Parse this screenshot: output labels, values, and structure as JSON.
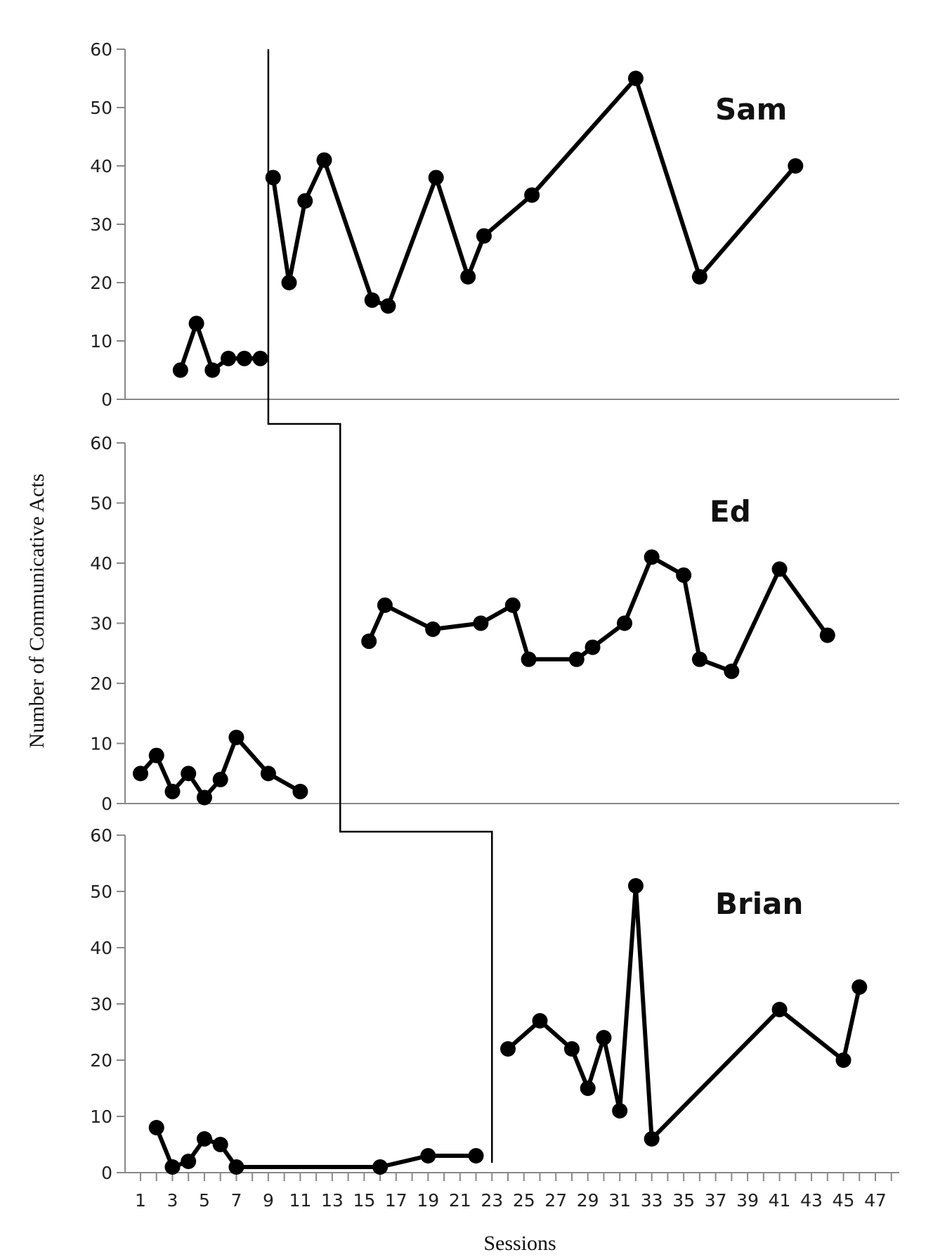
{
  "chart_data": {
    "type": "line",
    "ylabel": "Number of Communicative Acts",
    "xlabel": "Sessions",
    "x_ticks": [
      1,
      3,
      5,
      7,
      9,
      11,
      13,
      15,
      17,
      19,
      21,
      23,
      25,
      27,
      29,
      31,
      33,
      35,
      37,
      39,
      41,
      43,
      45,
      47
    ],
    "xlim": [
      0,
      48
    ],
    "ylim": [
      0,
      60
    ],
    "y_ticks": [
      0,
      10,
      20,
      30,
      40,
      50,
      60
    ],
    "grid": false,
    "line_color": "#000000",
    "phase_change_after_session": {
      "Sam": 9,
      "Ed": 13.5,
      "Brian": 23
    },
    "panels": [
      {
        "name": "Sam",
        "baseline": [
          [
            3.5,
            5
          ],
          [
            4.5,
            13
          ],
          [
            5.5,
            5
          ],
          [
            6.5,
            7
          ],
          [
            7.5,
            7
          ],
          [
            8.5,
            7
          ]
        ],
        "intervention": [
          [
            9.3,
            38
          ],
          [
            10.3,
            20
          ],
          [
            11.3,
            34
          ],
          [
            12.5,
            41
          ],
          [
            15.5,
            17
          ],
          [
            16.5,
            16
          ],
          [
            19.5,
            38
          ],
          [
            21.5,
            21
          ],
          [
            22.5,
            28
          ],
          [
            25.5,
            35
          ],
          [
            32,
            55
          ],
          [
            36,
            21
          ],
          [
            42,
            40
          ]
        ]
      },
      {
        "name": "Ed",
        "baseline": [
          [
            1,
            5
          ],
          [
            2,
            8
          ],
          [
            3,
            2
          ],
          [
            4,
            5
          ],
          [
            5,
            1
          ],
          [
            6,
            4
          ],
          [
            7,
            11
          ],
          [
            9,
            5
          ],
          [
            11,
            2
          ]
        ],
        "intervention": [
          [
            15.3,
            27
          ],
          [
            16.3,
            33
          ],
          [
            19.3,
            29
          ],
          [
            22.3,
            30
          ],
          [
            24.3,
            33
          ],
          [
            25.3,
            24
          ],
          [
            28.3,
            24
          ],
          [
            29.3,
            26
          ],
          [
            31.3,
            30
          ],
          [
            33,
            41
          ],
          [
            35,
            38
          ],
          [
            36,
            24
          ],
          [
            38,
            22
          ],
          [
            41,
            39
          ],
          [
            44,
            28
          ]
        ]
      },
      {
        "name": "Brian",
        "baseline": [
          [
            2,
            8
          ],
          [
            3,
            1
          ],
          [
            4,
            2
          ],
          [
            5,
            6
          ],
          [
            6,
            5
          ],
          [
            7,
            1
          ],
          [
            16,
            1
          ],
          [
            19,
            3
          ],
          [
            22,
            3
          ]
        ],
        "intervention": [
          [
            24,
            22
          ],
          [
            26,
            27
          ],
          [
            28,
            22
          ],
          [
            29,
            15
          ],
          [
            30,
            24
          ],
          [
            31,
            11
          ],
          [
            32,
            51
          ],
          [
            33,
            6
          ],
          [
            41,
            29
          ],
          [
            45,
            20
          ],
          [
            46,
            33
          ]
        ]
      }
    ]
  }
}
